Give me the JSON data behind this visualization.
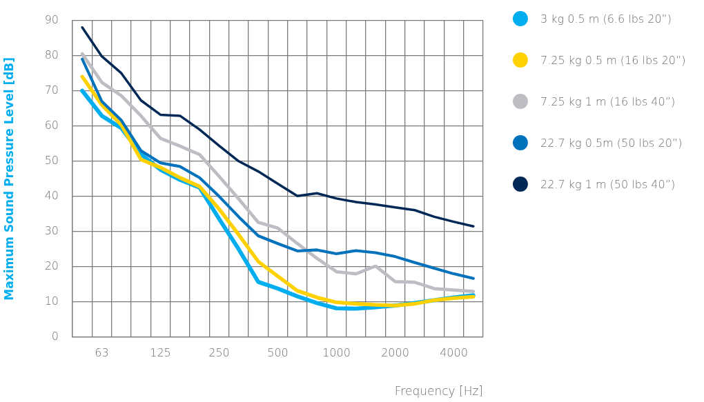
{
  "chart_data": {
    "type": "line",
    "xlabel": "Frequency [Hz]",
    "ylabel": "Maximum Sound Pressure Level [dB]",
    "categories": [
      null,
      "63",
      null,
      null,
      "125",
      null,
      null,
      "250",
      null,
      null,
      "500",
      null,
      null,
      "1000",
      null,
      null,
      "2000",
      null,
      null,
      "4000",
      null
    ],
    "series": [
      {
        "name": "3 kg 0.5 m (6.6 lbs 20”)",
        "color": "#00aeef",
        "values": [
          70,
          62.9,
          59.4,
          52,
          47.6,
          44.7,
          42.5,
          33.6,
          25,
          15.7,
          13.8,
          11.6,
          9.7,
          8.2,
          8.1,
          8.5,
          9,
          9.7,
          10.5,
          11.3,
          11.9
        ]
      },
      {
        "name": "7.25 kg 0.5 m (16 lbs 20”)",
        "color": "#ffd100",
        "values": [
          74,
          66,
          60.3,
          50.5,
          48.2,
          45.3,
          42.8,
          36.4,
          29.1,
          21.5,
          17.3,
          13.2,
          11.3,
          9.9,
          9.5,
          9.2,
          9,
          9.5,
          10.5,
          11.1,
          11.5
        ]
      },
      {
        "name": "7.25 kg 1 m (16 lbs 40”)",
        "color": "#bcbec4",
        "values": [
          80.5,
          72.4,
          68.6,
          62.9,
          56.5,
          54.3,
          51.9,
          45.7,
          39.3,
          32.6,
          31,
          26.6,
          22.4,
          18.6,
          18,
          20.2,
          15.8,
          15.6,
          13.8,
          13.4,
          13
        ]
      },
      {
        "name": "22.7 kg 0.5m (50 lbs 20”)",
        "color": "#0072bc",
        "values": [
          79,
          67,
          61.6,
          53,
          49.5,
          48.5,
          45.3,
          40,
          34.2,
          28.8,
          26.6,
          24.5,
          24.8,
          23.7,
          24.6,
          24,
          22.9,
          21.2,
          19.6,
          18,
          16.7
        ]
      },
      {
        "name": "22.7 kg 1 m (50 lbs 40”)",
        "color": "#002856",
        "values": [
          88,
          79.8,
          75,
          67.3,
          63.2,
          62.9,
          59,
          54.4,
          50,
          47.1,
          43.6,
          40.1,
          40.9,
          39.4,
          38.4,
          37.7,
          36.9,
          36.1,
          34.2,
          32.8,
          31.5
        ]
      }
    ],
    "ylim": [
      0,
      90
    ],
    "yticks": [
      0,
      10,
      20,
      30,
      40,
      50,
      60,
      70,
      80,
      90
    ],
    "grid": true,
    "legend": "right"
  }
}
